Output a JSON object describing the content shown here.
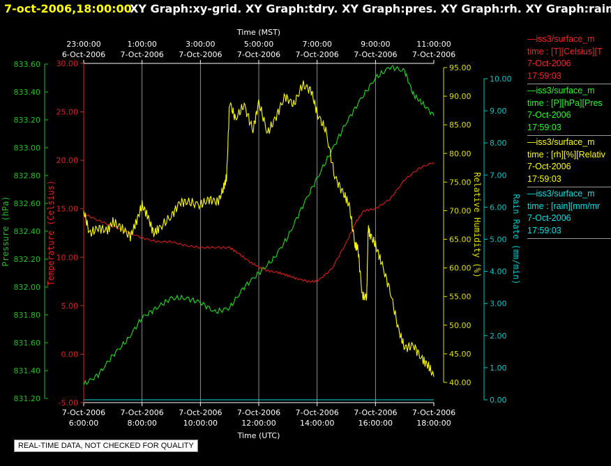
{
  "title": {
    "timestamp": "7-oct-2006,18:00:00",
    "graphs": "XY Graph:xy-grid.  XY Graph:tdry.  XY Graph:pres.  XY Graph:rh.  XY Graph:rain."
  },
  "note": "REAL-TIME DATA, NOT CHECKED FOR QUALITY",
  "legend": [
    {
      "color": "#ff2020",
      "lines": [
        "—iss3/surface_m",
        "time : [T][Celsius][T",
        "7-Oct-2006",
        "17:59:03"
      ]
    },
    {
      "color": "#20ff20",
      "lines": [
        "—iss3/surface_m",
        "time : [P][hPa][Pres",
        "7-Oct-2006",
        "17:59:03"
      ]
    },
    {
      "color": "#ffff00",
      "lines": [
        "—iss3/surface_m",
        "time : [rh][%][Relativ",
        "7-Oct-2006",
        "17:59:03"
      ]
    },
    {
      "color": "#00e5e5",
      "lines": [
        "—iss3/surface_m",
        "time : [rain][mm/mr",
        "7-Oct-2006",
        "17:59:03"
      ]
    }
  ],
  "chart_data": {
    "type": "line",
    "xlabel_top": "Time (MST)",
    "xlabel_bottom": "Time (UTC)",
    "x_range": [
      "6:00:00",
      "18:00:00"
    ],
    "bottom_ticks": [
      {
        "l1": "7-Oct-2006",
        "l2": "6:00:00"
      },
      {
        "l1": "7-Oct-2006",
        "l2": "8:00:00"
      },
      {
        "l1": "7-Oct-2006",
        "l2": "10:00:00"
      },
      {
        "l1": "7-Oct-2006",
        "l2": "12:00:00"
      },
      {
        "l1": "7-Oct-2006",
        "l2": "14:00:00"
      },
      {
        "l1": "7-Oct-2006",
        "l2": "16:00:00"
      },
      {
        "l1": "7-Oct-2006",
        "l2": "18:00:00"
      }
    ],
    "top_ticks": [
      {
        "l1": "23:00:00",
        "l2": "6-Oct-2006"
      },
      {
        "l1": "1:00:00",
        "l2": "7-Oct-2006"
      },
      {
        "l1": "3:00:00",
        "l2": "7-Oct-2006"
      },
      {
        "l1": "5:00:00",
        "l2": "7-Oct-2006"
      },
      {
        "l1": "7:00:00",
        "l2": "7-Oct-2006"
      },
      {
        "l1": "9:00:00",
        "l2": "7-Oct-2006"
      },
      {
        "l1": "11:00:00",
        "l2": "7-Oct-2006"
      }
    ],
    "axes": {
      "pressure": {
        "label": "Pressure (hPa)",
        "color": "#20c020",
        "min": 831.2,
        "max": 833.6,
        "ticks": [
          "831.20",
          "831.40",
          "831.60",
          "831.80",
          "832.00",
          "832.20",
          "832.40",
          "832.60",
          "832.80",
          "833.00",
          "833.20",
          "833.40",
          "833.60"
        ]
      },
      "temperature": {
        "label": "Temperature (Celsius)",
        "color": "#e02020",
        "min": -5,
        "max": 30,
        "ticks": [
          "-5.00",
          "0.00",
          "5.00",
          "10.00",
          "15.00",
          "20.00",
          "25.00",
          "30.00"
        ]
      },
      "humidity": {
        "label": "Relative Humidity (%)",
        "color": "#e0e000",
        "min": 40,
        "max": 95,
        "ticks": [
          "40.00",
          "45.00",
          "50.00",
          "55.00",
          "60.00",
          "65.00",
          "70.00",
          "75.00",
          "80.00",
          "85.00",
          "90.00",
          "95.00"
        ]
      },
      "rain": {
        "label": "Rain Rate (mm/min)",
        "color": "#00c8c8",
        "min": 0,
        "max": 10,
        "ticks": [
          "0.00",
          "1.00",
          "2.00",
          "3.00",
          "4.00",
          "5.00",
          "6.00",
          "7.00",
          "8.00",
          "9.00",
          "10.00"
        ]
      }
    },
    "series": [
      {
        "name": "Temperature",
        "axis": "temperature",
        "color": "#e01818",
        "x": [
          6.0,
          6.5,
          7.0,
          7.5,
          8.0,
          8.5,
          9.0,
          9.5,
          10.0,
          10.5,
          11.0,
          11.3,
          11.7,
          12.0,
          12.3,
          12.7,
          13.0,
          13.3,
          13.7,
          14.0,
          14.5,
          15.0,
          15.3,
          15.6,
          16.0,
          16.5,
          17.0,
          17.5,
          18.0
        ],
        "y": [
          14.5,
          13.8,
          13.2,
          12.6,
          12.0,
          11.6,
          11.6,
          11.2,
          11.0,
          11.0,
          11.0,
          10.4,
          9.5,
          9.0,
          8.6,
          8.4,
          8.1,
          7.8,
          7.5,
          7.5,
          8.8,
          11.5,
          13.5,
          14.8,
          15.0,
          16.0,
          18.0,
          19.2,
          19.8
        ]
      },
      {
        "name": "Pressure",
        "axis": "pressure",
        "color": "#18e018",
        "x": [
          6.0,
          6.5,
          7.0,
          7.5,
          8.0,
          8.5,
          9.0,
          9.5,
          10.0,
          10.5,
          11.0,
          11.5,
          12.0,
          12.5,
          13.0,
          13.5,
          14.0,
          14.5,
          15.0,
          15.5,
          16.0,
          16.5,
          17.0,
          17.3,
          17.6,
          18.0
        ],
        "y": [
          831.3,
          831.37,
          831.51,
          831.62,
          831.78,
          831.85,
          831.92,
          831.92,
          831.89,
          831.82,
          831.85,
          832.0,
          832.1,
          832.2,
          832.36,
          832.58,
          832.78,
          832.98,
          833.18,
          833.35,
          833.5,
          833.58,
          833.55,
          833.38,
          833.32,
          833.23
        ]
      },
      {
        "name": "Relative Humidity",
        "axis": "humidity",
        "color": "#ffff00",
        "x": [
          6.0,
          6.2,
          6.5,
          6.8,
          7.0,
          7.3,
          7.6,
          7.8,
          8.0,
          8.2,
          8.4,
          8.6,
          9.0,
          9.3,
          9.6,
          10.0,
          10.3,
          10.6,
          10.8,
          10.9,
          11.0,
          11.2,
          11.5,
          11.8,
          12.0,
          12.3,
          12.6,
          12.9,
          13.2,
          13.5,
          13.8,
          14.0,
          14.3,
          14.6,
          14.9,
          15.1,
          15.3,
          15.4,
          15.55,
          15.7,
          15.75,
          15.8,
          16.0,
          16.2,
          16.5,
          16.8,
          17.0,
          17.3,
          17.6,
          17.8,
          18.0
        ],
        "y": [
          70.0,
          66.0,
          67.0,
          66.5,
          68.0,
          67.0,
          65.5,
          68.0,
          71.0,
          69.0,
          66.0,
          67.0,
          69.0,
          71.5,
          71.5,
          71.0,
          72.0,
          71.5,
          74.0,
          76.0,
          89.0,
          86.0,
          88.5,
          84.0,
          89.0,
          83.5,
          86.5,
          90.0,
          88.5,
          92.0,
          91.0,
          87.0,
          84.0,
          76.0,
          73.0,
          71.0,
          64.0,
          63.5,
          55.0,
          55.0,
          67.0,
          66.0,
          64.0,
          61.0,
          56.0,
          49.0,
          46.0,
          46.5,
          44.0,
          43.0,
          41.0
        ]
      },
      {
        "name": "Rain Rate",
        "axis": "rain",
        "color": "#00e5e5",
        "x": [
          6.0,
          18.0
        ],
        "y": [
          0.0,
          0.0
        ]
      }
    ],
    "grid": true
  }
}
